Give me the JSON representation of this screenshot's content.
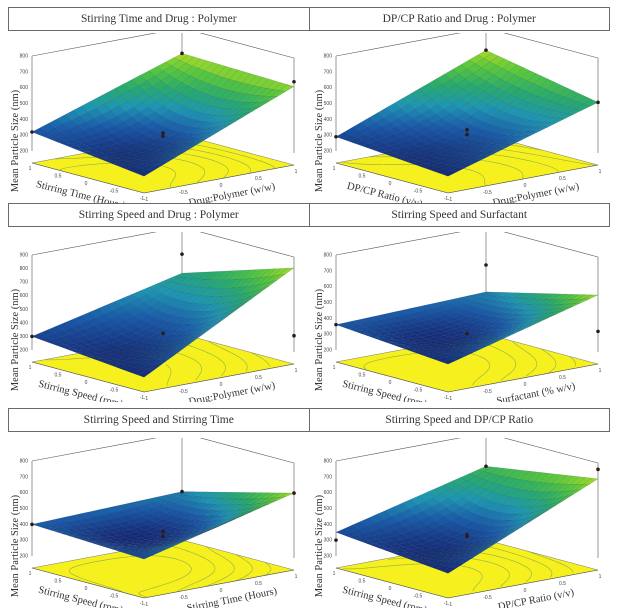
{
  "figure": {
    "rows": [
      {
        "titles": [
          "Stirring Time and Drug : Polymer",
          "DP/CP Ratio and Drug : Polymer"
        ]
      },
      {
        "titles": [
          "Stirring Speed and Drug : Polymer",
          "Stirring Speed and Surfactant"
        ]
      },
      {
        "titles": [
          "Stirring Speed and Stirring Time",
          "Stirring Speed and DP/CP Ratio"
        ]
      }
    ]
  },
  "chart_data": [
    {
      "type": "surface",
      "title": "Stirring Time and Drug : Polymer",
      "xlabel": "Stirring Time (Hours)",
      "ylabel": "Drug:Polymer (w/w)",
      "zlabel": "Mean Particle Size (nm)",
      "x_ticks": [
        "1",
        "0.5",
        "0",
        "-0.5",
        "-1"
      ],
      "y_ticks": [
        "-1",
        "-0.5",
        "0",
        "0.5",
        "1"
      ],
      "z_ticks": [
        "200",
        "300",
        "400",
        "500",
        "600",
        "700",
        "800"
      ],
      "zlim": [
        200,
        800
      ],
      "xlim": [
        -1,
        1
      ],
      "ylim": [
        -1,
        1
      ],
      "corner_values": {
        "x1_y-1": 320,
        "x-1_y-1": 230,
        "x1_y1": 640,
        "x-1_y1": 620
      },
      "center_value": 310,
      "design_points": [
        320,
        640,
        650,
        300,
        320
      ]
    },
    {
      "type": "surface",
      "title": "DP/CP Ratio and Drug : Polymer",
      "xlabel": "DP/CP Ratio (v/v)",
      "ylabel": "Drug:Polymer (w/w)",
      "zlabel": "Mean Particle Size (nm)",
      "x_ticks": [
        "1",
        "0.5",
        "0",
        "-0.5",
        "-1"
      ],
      "y_ticks": [
        "-1",
        "-0.5",
        "0",
        "0.5",
        "1"
      ],
      "z_ticks": [
        "200",
        "300",
        "400",
        "500",
        "600",
        "700",
        "800"
      ],
      "zlim": [
        200,
        800
      ],
      "xlim": [
        -1,
        1
      ],
      "ylim": [
        -1,
        1
      ],
      "corner_values": {
        "x1_y-1": 290,
        "x-1_y-1": 230,
        "x1_y1": 660,
        "x-1_y1": 520
      },
      "center_value": 330,
      "design_points": [
        290,
        660,
        520,
        310,
        340
      ]
    },
    {
      "type": "surface",
      "title": "Stirring Speed and Drug : Polymer",
      "xlabel": "Stirring Speed (rpm)",
      "ylabel": "Drug:Polymer (w/w)",
      "zlabel": "Mean Particle Size (nm)",
      "x_ticks": [
        "1",
        "0.5",
        "0",
        "-0.5",
        "-1"
      ],
      "y_ticks": [
        "-1",
        "-0.5",
        "0",
        "0.5",
        "1"
      ],
      "z_ticks": [
        "200",
        "300",
        "400",
        "500",
        "600",
        "700",
        "800",
        "900"
      ],
      "zlim": [
        200,
        900
      ],
      "xlim": [
        -1,
        1
      ],
      "ylim": [
        -1,
        1
      ],
      "corner_values": {
        "x1_y-1": 300,
        "x-1_y-1": 220,
        "x1_y1": 560,
        "x-1_y1": 820
      },
      "center_value": 320,
      "design_points": [
        300,
        700,
        320,
        330
      ]
    },
    {
      "type": "surface",
      "title": "Stirring Speed and Surfactant",
      "xlabel": "Stirring Speed (rpm)",
      "ylabel": "Surfactant (% w/v)",
      "zlabel": "Mean Particle Size (nm)",
      "x_ticks": [
        "1",
        "0.5",
        "0",
        "-0.5",
        "-1"
      ],
      "y_ticks": [
        "-1",
        "-0.5",
        "0",
        "0.5",
        "1"
      ],
      "z_ticks": [
        "200",
        "300",
        "400",
        "500",
        "600",
        "700",
        "800"
      ],
      "zlim": [
        200,
        800
      ],
      "xlim": [
        -1,
        1
      ],
      "ylim": [
        -1,
        1
      ],
      "corner_values": {
        "x1_y-1": 360,
        "x-1_y-1": 300,
        "x1_y1": 390,
        "x-1_y1": 560
      },
      "center_value": 320,
      "design_points": [
        360,
        560,
        330,
        310
      ]
    },
    {
      "type": "surface",
      "title": "Stirring Speed and Stirring Time",
      "xlabel": "Stirring Speed (rpm)",
      "ylabel": "Stirring Time (Hours)",
      "zlabel": "Mean Particle Size (nm)",
      "x_ticks": [
        "1",
        "0.5",
        "0",
        "-0.5",
        "-1"
      ],
      "y_ticks": [
        "-1",
        "-0.5",
        "0",
        "0.5",
        "1"
      ],
      "z_ticks": [
        "200",
        "300",
        "400",
        "500",
        "600",
        "700",
        "800"
      ],
      "zlim": [
        200,
        800
      ],
      "xlim": [
        -1,
        1
      ],
      "ylim": [
        -1,
        1
      ],
      "corner_values": {
        "x1_y-1": 400,
        "x-1_y-1": 370,
        "x1_y1": 430,
        "x-1_y1": 610
      },
      "center_value": 340,
      "design_points": [
        400,
        430,
        610,
        360,
        330
      ]
    },
    {
      "type": "surface",
      "title": "Stirring Speed and DP/CP Ratio",
      "xlabel": "Stirring Speed (rpm)",
      "ylabel": "DP/CP Ratio (v/v)",
      "zlabel": "Mean Particle Size (nm)",
      "x_ticks": [
        "1",
        "0.5",
        "0",
        "-0.5",
        "-1"
      ],
      "y_ticks": [
        "-1",
        "-0.5",
        "0",
        "0.5",
        "1"
      ],
      "z_ticks": [
        "200",
        "300",
        "400",
        "500",
        "600",
        "700",
        "800"
      ],
      "zlim": [
        200,
        800
      ],
      "xlim": [
        -1,
        1
      ],
      "ylim": [
        -1,
        1
      ],
      "corner_values": {
        "x1_y-1": 350,
        "x-1_y-1": 280,
        "x1_y1": 590,
        "x-1_y1": 700
      },
      "center_value": 340,
      "design_points": [
        300,
        590,
        760,
        340,
        330
      ]
    }
  ]
}
